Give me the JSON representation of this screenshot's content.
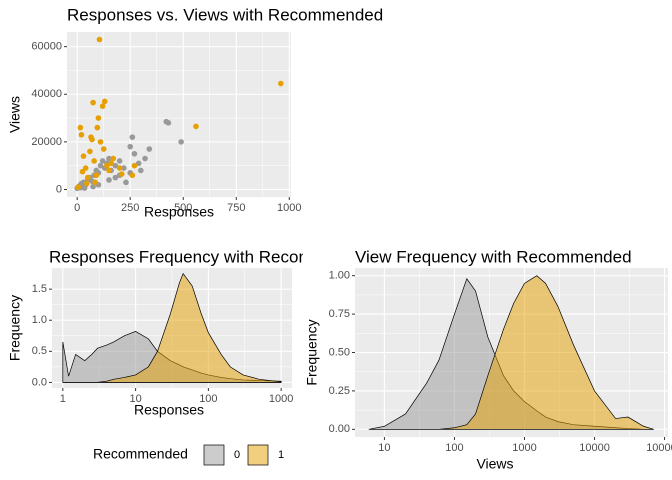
{
  "chart_data": [
    {
      "type": "scatter",
      "title": "Responses vs. Views with Recommended",
      "x_label": "Responses",
      "y_label": "Views",
      "xlim": [
        -48,
        1008
      ],
      "ylim": [
        -3150,
        66150
      ],
      "xticks": [
        0,
        250,
        500,
        750,
        1000
      ],
      "yticks": [
        0,
        20000,
        40000,
        60000
      ],
      "grid": true,
      "series": [
        {
          "name": "0",
          "color": "#999999",
          "x": [
            0,
            5,
            10,
            15,
            20,
            30,
            40,
            50,
            60,
            70,
            80,
            90,
            100,
            110,
            120,
            130,
            140,
            150,
            160,
            180,
            200,
            220,
            250,
            260,
            270,
            290,
            320,
            340,
            420,
            430,
            490,
            150,
            200,
            250,
            300,
            100,
            75,
            35,
            180,
            230
          ],
          "y": [
            500,
            1000,
            1500,
            800,
            2500,
            3000,
            2000,
            4000,
            5000,
            3500,
            6000,
            8000,
            7000,
            10000,
            12000,
            9000,
            11000,
            13000,
            8000,
            10000,
            12000,
            9000,
            18000,
            22000,
            15000,
            11000,
            13000,
            17000,
            28500,
            28000,
            20000,
            4000,
            6000,
            7000,
            8000,
            2000,
            1200,
            600,
            5000,
            3000
          ]
        },
        {
          "name": "1",
          "color": "#E69F00",
          "x": [
            5,
            15,
            20,
            25,
            30,
            40,
            50,
            60,
            65,
            70,
            75,
            80,
            85,
            95,
            100,
            105,
            110,
            120,
            125,
            130,
            140,
            150,
            160,
            170,
            200,
            210,
            260,
            270,
            560,
            960,
            45,
            90
          ],
          "y": [
            1000,
            26000,
            23000,
            7500,
            14000,
            9000,
            5000,
            16000,
            22000,
            21000,
            36500,
            12000,
            3000,
            26000,
            30000,
            63000,
            20000,
            35000,
            17000,
            37000,
            10000,
            8000,
            11000,
            13000,
            9000,
            6500,
            6000,
            10000,
            26500,
            44500,
            2500,
            6000
          ]
        }
      ]
    },
    {
      "type": "density",
      "title": "Responses Frequency with Recommended",
      "x_label": "Responses",
      "y_label": "Frequency",
      "log_x": true,
      "legend_title": "Recommended",
      "legend": "bottom",
      "xlim": [
        0.71,
        1410
      ],
      "ylim": [
        -0.09,
        1.84
      ],
      "xticks": [
        1,
        10,
        100,
        1000
      ],
      "yticks": [
        {
          "value": 0,
          "label": "0.0"
        },
        0.5,
        {
          "value": 1,
          "label": "1.0"
        },
        1.5
      ],
      "grid": true,
      "x": [
        1,
        1.2,
        1.5,
        2,
        2.5,
        3,
        4,
        5,
        7,
        10,
        15,
        20,
        30,
        40,
        45,
        60,
        80,
        100,
        150,
        200,
        300,
        500,
        1000
      ],
      "series": [
        {
          "name": "0",
          "color": "#999999",
          "values": [
            0.65,
            0.1,
            0.45,
            0.35,
            0.45,
            0.55,
            0.6,
            0.65,
            0.75,
            0.82,
            0.7,
            0.5,
            0.35,
            0.28,
            0.25,
            0.2,
            0.15,
            0.12,
            0.08,
            0.06,
            0.04,
            0.03,
            0.02
          ]
        },
        {
          "name": "1",
          "color": "#E69F00",
          "values": [
            0,
            0,
            0,
            0,
            0,
            0,
            0.02,
            0.05,
            0.08,
            0.12,
            0.25,
            0.5,
            1.1,
            1.6,
            1.75,
            1.55,
            1.1,
            0.8,
            0.45,
            0.25,
            0.12,
            0.05,
            0.01
          ]
        }
      ]
    },
    {
      "type": "density",
      "title": "View Frequency with Recommended",
      "x_label": "Views",
      "y_label": "Frequency",
      "log_x": true,
      "xlim": [
        3.8,
        112000
      ],
      "ylim": [
        -0.05,
        1.05
      ],
      "xticks": [
        10,
        100,
        1000,
        10000,
        100000
      ],
      "yticks": [
        {
          "value": 0,
          "label": "0.00"
        },
        0.25,
        {
          "value": 0.5,
          "label": "0.50"
        },
        0.75,
        {
          "value": 1,
          "label": "1.00"
        }
      ],
      "grid": true,
      "x": [
        6,
        10,
        20,
        40,
        60,
        100,
        150,
        200,
        300,
        500,
        700,
        1000,
        1500,
        2000,
        3000,
        5000,
        10000,
        20000,
        30000,
        50000,
        70000
      ],
      "series": [
        {
          "name": "0",
          "color": "#999999",
          "values": [
            0,
            0.02,
            0.1,
            0.3,
            0.45,
            0.75,
            0.98,
            0.9,
            0.6,
            0.35,
            0.25,
            0.18,
            0.12,
            0.08,
            0.05,
            0.03,
            0.02,
            0.01,
            0.005,
            0,
            0
          ]
        },
        {
          "name": "1",
          "color": "#E69F00",
          "values": [
            0,
            0,
            0,
            0,
            0,
            0.01,
            0.03,
            0.1,
            0.35,
            0.65,
            0.82,
            0.95,
            1,
            0.95,
            0.8,
            0.55,
            0.25,
            0.07,
            0.08,
            0.02,
            0
          ]
        }
      ]
    }
  ]
}
